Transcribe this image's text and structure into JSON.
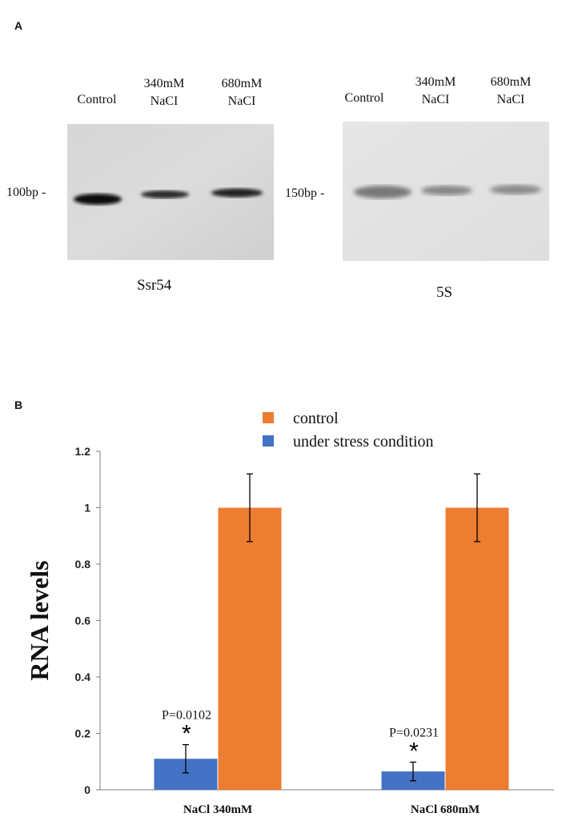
{
  "panel_a": {
    "label": "A",
    "left_gel": {
      "title": "Ssr54",
      "marker": "100bp -",
      "lanes": [
        "Control",
        "340mM\nNaCI",
        "680mM\nNaCI"
      ]
    },
    "right_gel": {
      "title": "5S",
      "marker": "150bp -",
      "lanes": [
        "Control",
        "340mM\nNaCI",
        "680mM\nNaCI"
      ]
    }
  },
  "panel_b": {
    "label": "B"
  },
  "colors": {
    "control": "#ed7d31",
    "stress": "#4472c4",
    "axis": "#7f7f7f"
  },
  "chart_data": {
    "type": "bar",
    "categories": [
      "NaCl 340mM",
      "NaCl 680mM"
    ],
    "series": [
      {
        "name": "under stress condition",
        "values": [
          0.11,
          0.065
        ],
        "errors": [
          0.05,
          0.033
        ]
      },
      {
        "name": "control",
        "values": [
          1.0,
          1.0
        ],
        "errors": [
          0.12,
          0.12
        ]
      }
    ],
    "legend_order": [
      "control",
      "under stress condition"
    ],
    "ylabel": "RNA levels",
    "xlabel": "",
    "ylim": [
      0,
      1.2
    ],
    "yticks": [
      "0",
      "0.2",
      "0.4",
      "0.6",
      "0.8",
      "1",
      "1.2"
    ],
    "annotations": [
      {
        "text": "P=0.0102",
        "marker": "*"
      },
      {
        "text": "P=0.0231",
        "marker": "*"
      }
    ],
    "legend_position": "top"
  }
}
